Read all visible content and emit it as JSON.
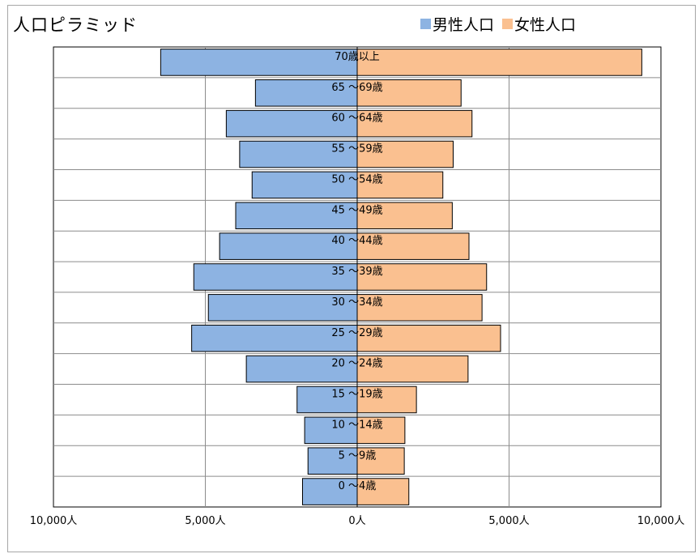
{
  "chart_data": {
    "type": "bar",
    "orientation": "horizontal-population-pyramid",
    "title": "人口ピラミッド",
    "categories": [
      "0 ～4歳",
      "5 ～9歳",
      "10 ～14歳",
      "15 ～19歳",
      "20 ～24歳",
      "25 ～29歳",
      "30 ～34歳",
      "35 ～39歳",
      "40 ～44歳",
      "45 ～49歳",
      "50 ～54歳",
      "55 ～59歳",
      "60 ～64歳",
      "65 ～69歳",
      "70歳以上"
    ],
    "series": [
      {
        "name": "男性人口",
        "color": "#8db3e2",
        "values": [
          1800,
          1620,
          1730,
          1980,
          3650,
          5450,
          4900,
          5380,
          4530,
          4000,
          3460,
          3870,
          4310,
          3350,
          6470
        ]
      },
      {
        "name": "女性人口",
        "color": "#fac090",
        "values": [
          1700,
          1550,
          1570,
          1950,
          3650,
          4720,
          4110,
          4260,
          3680,
          3130,
          2820,
          3160,
          3780,
          3420,
          9370
        ]
      }
    ],
    "xlim": [
      -10000,
      10000
    ],
    "xticks": [
      {
        "value": -10000,
        "label": "10,000人"
      },
      {
        "value": -5000,
        "label": "5,000人"
      },
      {
        "value": 0,
        "label": "0人"
      },
      {
        "value": 5000,
        "label": "5,000人"
      },
      {
        "value": 10000,
        "label": "10,000人"
      }
    ],
    "grid": true,
    "legend": "top-right"
  }
}
